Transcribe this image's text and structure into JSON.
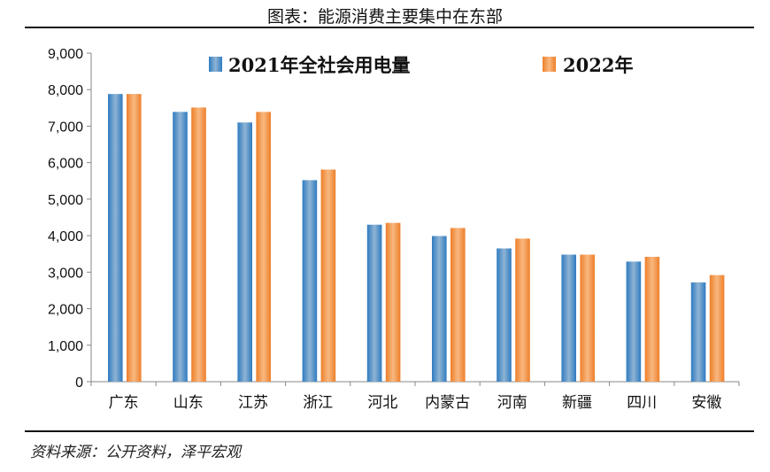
{
  "title": "图表：能源消费主要集中在东部",
  "source": "资料来源：公开资料，泽平宏观",
  "chart_data": {
    "type": "bar",
    "title": "图表：能源消费主要集中在东部",
    "xlabel": "",
    "ylabel": "",
    "ylim": [
      0,
      9000
    ],
    "yticks": [
      0,
      1000,
      2000,
      3000,
      4000,
      5000,
      6000,
      7000,
      8000,
      9000
    ],
    "ytick_labels": [
      "0",
      "1,000",
      "2,000",
      "3,000",
      "4,000",
      "5,000",
      "6,000",
      "7,000",
      "8,000",
      "9,000"
    ],
    "categories": [
      "广东",
      "山东",
      "江苏",
      "浙江",
      "河北",
      "内蒙古",
      "河南",
      "新疆",
      "四川",
      "安徽"
    ],
    "series": [
      {
        "name": "2021年全社会用电量",
        "color": "#3b86c4",
        "values": [
          7880,
          7390,
          7100,
          5520,
          4300,
          3990,
          3650,
          3480,
          3290,
          2720
        ]
      },
      {
        "name": "2022年",
        "color": "#f28e3c",
        "values": [
          7880,
          7510,
          7390,
          5810,
          4350,
          4210,
          3920,
          3480,
          3420,
          2920
        ]
      }
    ],
    "legend": "top",
    "grid": false
  }
}
